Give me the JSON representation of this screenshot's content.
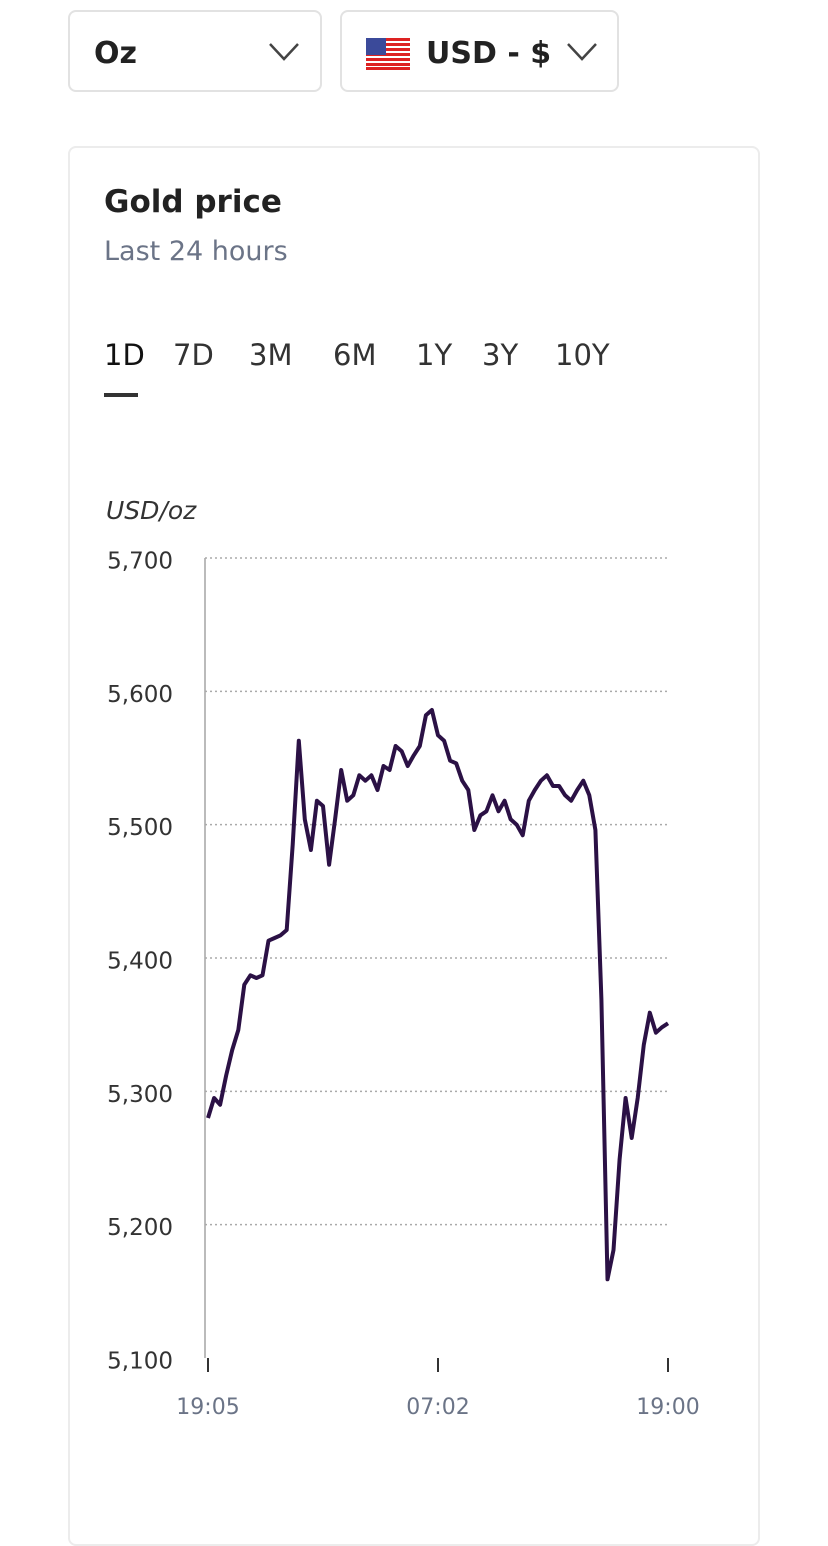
{
  "selectors": {
    "unit": "Oz",
    "currency": "USD - $"
  },
  "card": {
    "title": "Gold price",
    "subtitle": "Last 24 hours",
    "tabs": [
      "1D",
      "7D",
      "3M",
      "6M",
      "1Y",
      "3Y",
      "10Y"
    ],
    "active_tab": "1D"
  },
  "chart_data": {
    "type": "line",
    "y_label": "USD/oz",
    "color": "#2b1145",
    "grid": true,
    "categories": [
      "19:05",
      null,
      null,
      null,
      null,
      null,
      null,
      null,
      null,
      null,
      null,
      null,
      null,
      null,
      null,
      null,
      null,
      null,
      null,
      null,
      null,
      null,
      null,
      null,
      null,
      null,
      null,
      null,
      null,
      null,
      null,
      null,
      null,
      null,
      null,
      null,
      null,
      null,
      "07:02",
      null,
      null,
      null,
      null,
      null,
      null,
      null,
      null,
      null,
      null,
      null,
      null,
      null,
      null,
      null,
      null,
      null,
      null,
      null,
      null,
      null,
      null,
      null,
      null,
      null,
      null,
      null,
      null,
      null,
      null,
      null,
      null,
      null,
      null,
      null,
      null,
      null,
      "19:00"
    ],
    "values": [
      5280,
      5295,
      5290,
      5312,
      5331,
      5346,
      5380,
      5387,
      5385,
      5387,
      5413,
      5415,
      5417,
      5421,
      5485,
      5563,
      5504,
      5481,
      5518,
      5514,
      5470,
      5504,
      5541,
      5518,
      5522,
      5537,
      5533,
      5537,
      5526,
      5544,
      5541,
      5559,
      5555,
      5544,
      5552,
      5559,
      5582,
      5586,
      5567,
      5563,
      5548,
      5546,
      5533,
      5526,
      5496,
      5507,
      5510,
      5522,
      5510,
      5518,
      5504,
      5500,
      5492,
      5518,
      5526,
      5533,
      5537,
      5529,
      5529,
      5522,
      5518,
      5526,
      5533,
      5522,
      5496,
      5369,
      5159,
      5181,
      5249,
      5295,
      5265,
      5295,
      5335,
      5359,
      5344,
      5348,
      5351
    ],
    "ylim": [
      5100,
      5700
    ],
    "yticks": [
      {
        "value": 5100,
        "label": "5,100"
      },
      {
        "value": 5200,
        "label": "5,200"
      },
      {
        "value": 5300,
        "label": "5,300"
      },
      {
        "value": 5400,
        "label": "5,400"
      },
      {
        "value": 5500,
        "label": "5,500"
      },
      {
        "value": 5600,
        "label": "5,600"
      },
      {
        "value": 5700,
        "label": "5,700"
      }
    ]
  }
}
